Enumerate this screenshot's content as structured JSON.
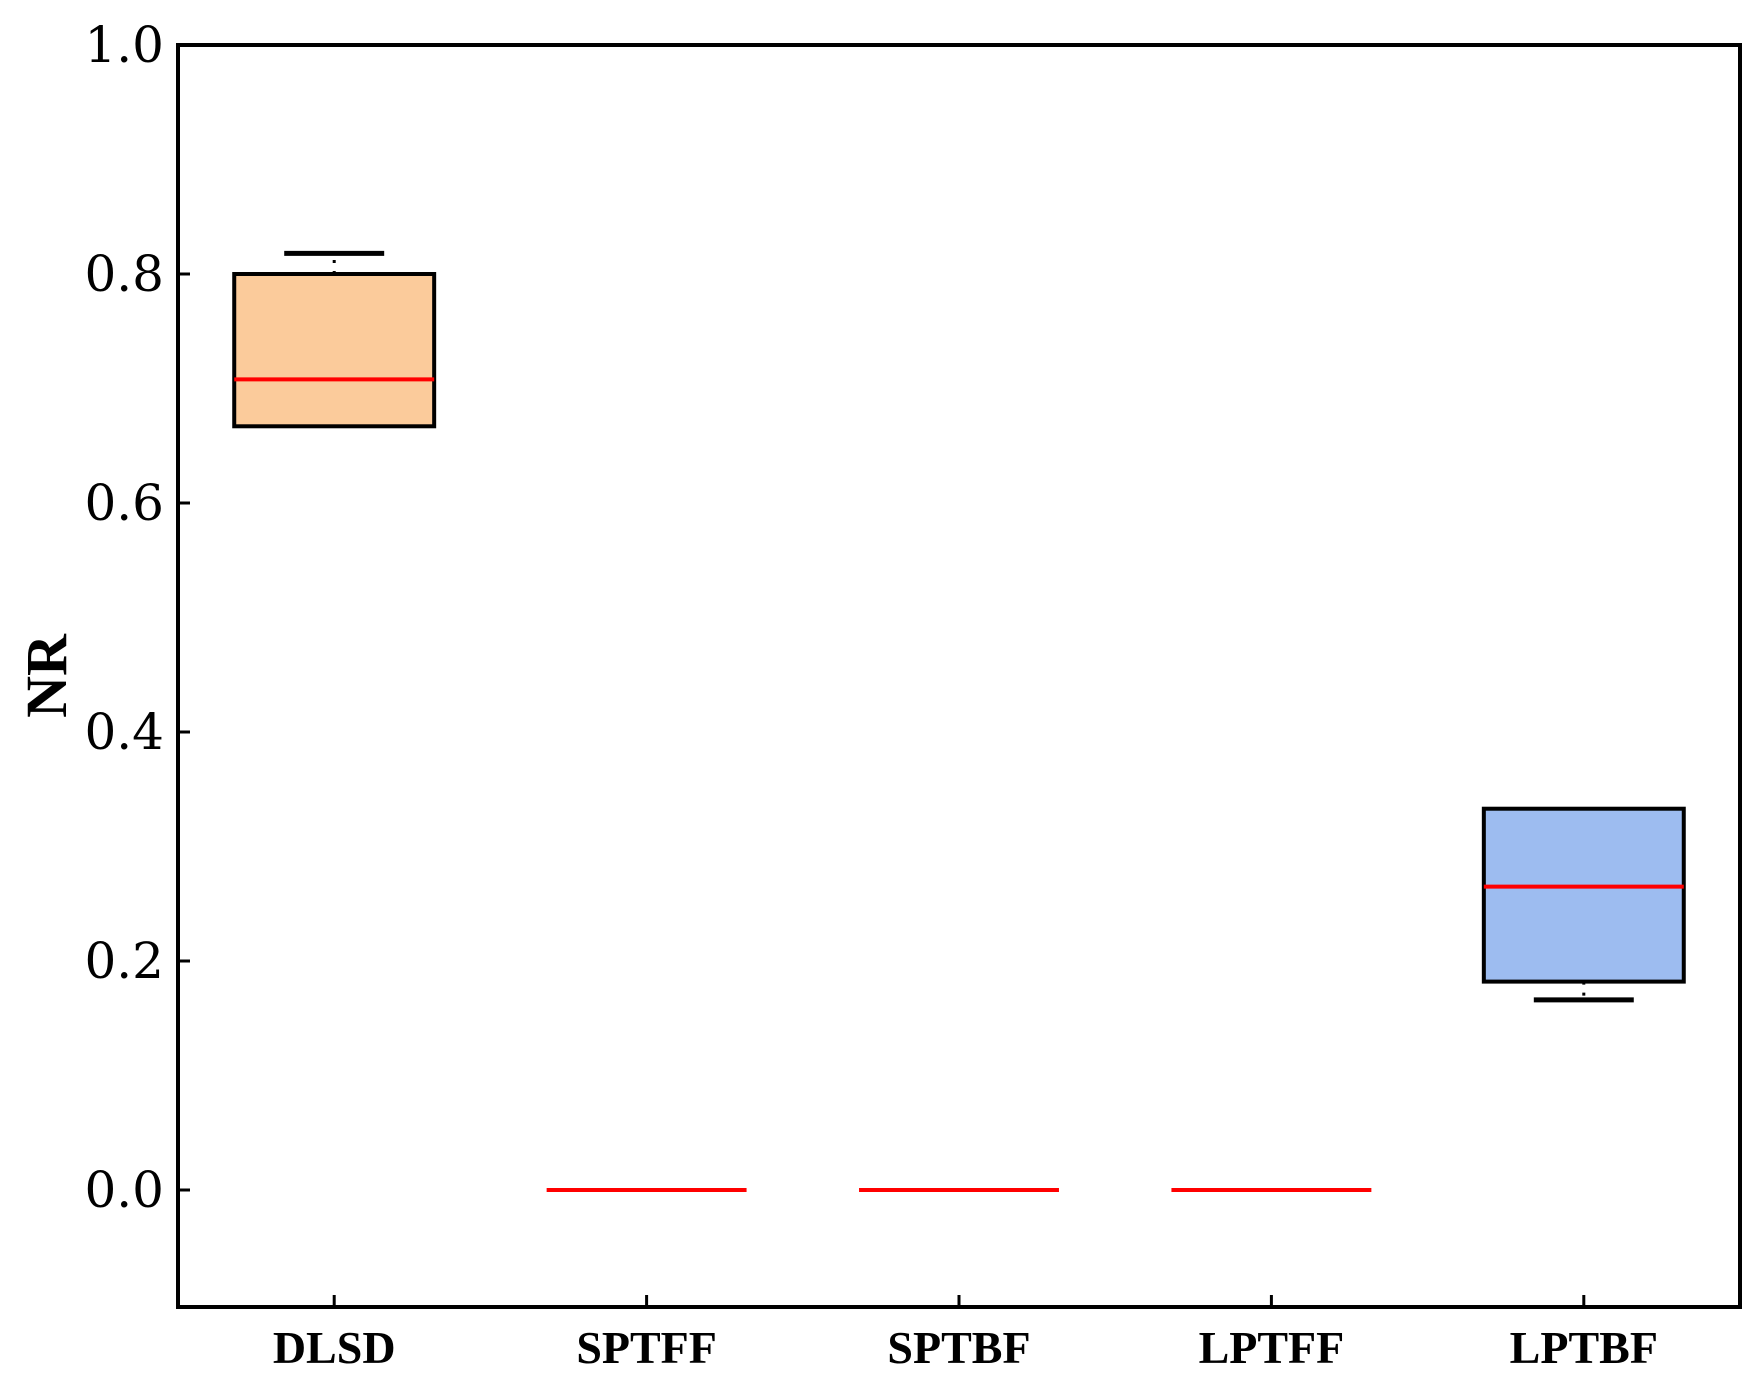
{
  "chart_data": {
    "type": "box",
    "title": "",
    "xlabel": "",
    "ylabel": "NR",
    "ylim": [
      -0.1,
      1.0
    ],
    "yticks": [
      0.0,
      0.2,
      0.4,
      0.6,
      0.8,
      1.0
    ],
    "ytick_labels": [
      "0.0",
      "0.2",
      "0.4",
      "0.6",
      "0.8",
      "1.0"
    ],
    "categories": [
      "DLSD",
      "SPTFF",
      "SPTBF",
      "LPTFF",
      "LPTBF"
    ],
    "boxes": [
      {
        "category": "DLSD",
        "q1": 0.667,
        "median": 0.708,
        "q3": 0.8,
        "whisker_low": 0.667,
        "whisker_high": 0.818,
        "fill": "#fbcb9b"
      },
      {
        "category": "SPTFF",
        "q1": 0.0,
        "median": 0.0,
        "q3": 0.0,
        "whisker_low": 0.0,
        "whisker_high": 0.0,
        "fill": "#fbcb9b"
      },
      {
        "category": "SPTBF",
        "q1": 0.0,
        "median": 0.0,
        "q3": 0.0,
        "whisker_low": 0.0,
        "whisker_high": 0.0,
        "fill": "#fbcb9b"
      },
      {
        "category": "LPTFF",
        "q1": 0.0,
        "median": 0.0,
        "q3": 0.0,
        "whisker_low": 0.0,
        "whisker_high": 0.0,
        "fill": "#fbcb9b"
      },
      {
        "category": "LPTBF",
        "q1": 0.182,
        "median": 0.265,
        "q3": 0.333,
        "whisker_low": 0.166,
        "whisker_high": 0.333,
        "fill": "#9dbcf0"
      }
    ],
    "median_color": "#ff0000",
    "grid": false,
    "legend": "none"
  }
}
